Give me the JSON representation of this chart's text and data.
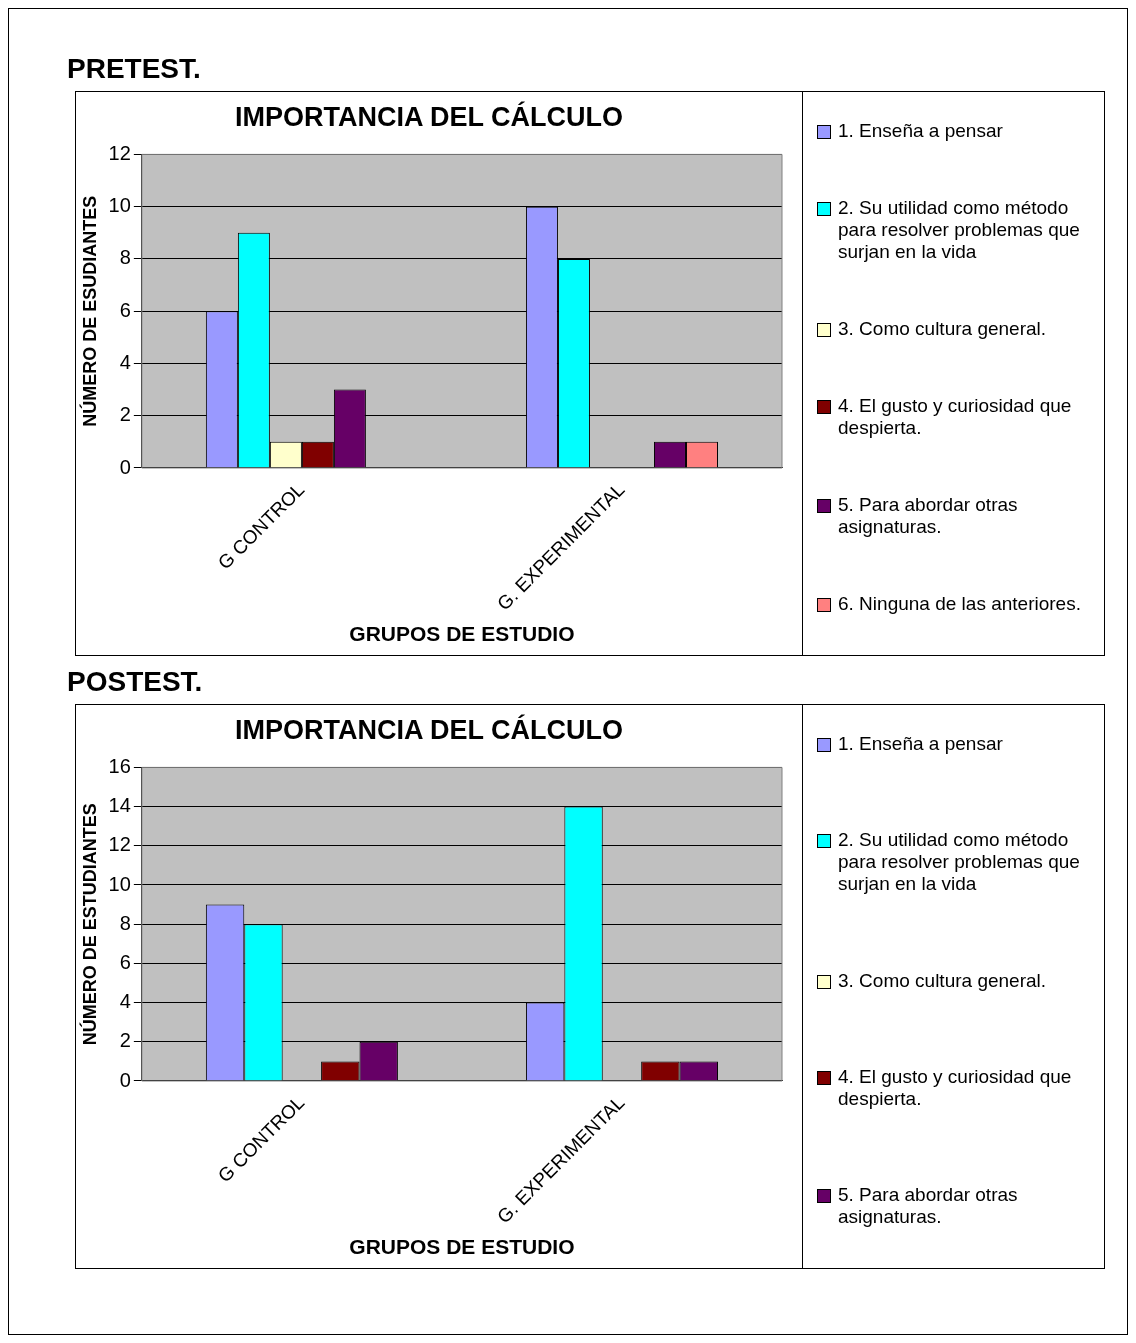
{
  "chart_data": [
    {
      "type": "bar",
      "title": "IMPORTANCIA DEL CÁLCULO",
      "annotations": [
        "PRETEST."
      ],
      "xlabel": "GRUPOS DE ESTUDIO",
      "ylabel": "NÚMERO DE ESUDIANTES",
      "categories": [
        "G CONTROL",
        "G. EXPERIMENTAL"
      ],
      "series": [
        {
          "name": "1. Enseña a pensar",
          "color": "#9999ff",
          "values": [
            6,
            10
          ]
        },
        {
          "name": "2. Su utilidad como método para resolver problemas que surjan en la vida",
          "color": "#00ffff",
          "values": [
            9,
            8
          ]
        },
        {
          "name": "3. Como cultura general.",
          "color": "#ffffcc",
          "values": [
            1,
            0
          ]
        },
        {
          "name": "4. El gusto y curiosidad que despierta.",
          "color": "#800000",
          "values": [
            1,
            0
          ]
        },
        {
          "name": "5. Para abordar otras asignaturas.",
          "color": "#660066",
          "values": [
            3,
            1
          ]
        },
        {
          "name": "6. Ninguna de las anteriores.",
          "color": "#ff8080",
          "values": [
            0,
            1
          ]
        }
      ],
      "ylim": [
        0,
        12
      ],
      "yticks": [
        0,
        2,
        4,
        6,
        8,
        10,
        12
      ],
      "grid": "y",
      "legend": "right"
    },
    {
      "type": "bar",
      "title": "IMPORTANCIA DEL CÁLCULO",
      "annotations": [
        "POSTEST."
      ],
      "xlabel": "GRUPOS DE ESTUDIO",
      "ylabel": "NÚMERO DE ESTUDIANTES",
      "categories": [
        "G CONTROL",
        "G. EXPERIMENTAL"
      ],
      "series": [
        {
          "name": "1. Enseña a pensar",
          "color": "#9999ff",
          "values": [
            9,
            4
          ]
        },
        {
          "name": "2. Su utilidad como método para resolver problemas que surjan en la vida",
          "color": "#00ffff",
          "values": [
            8,
            14
          ]
        },
        {
          "name": "3. Como cultura general.",
          "color": "#ffffcc",
          "values": [
            0,
            0
          ]
        },
        {
          "name": "4. El gusto y curiosidad que despierta.",
          "color": "#800000",
          "values": [
            1,
            1
          ]
        },
        {
          "name": "5. Para abordar otras asignaturas.",
          "color": "#660066",
          "values": [
            2,
            1
          ]
        }
      ],
      "ylim": [
        0,
        16
      ],
      "yticks": [
        0,
        2,
        4,
        6,
        8,
        10,
        12,
        14,
        16
      ],
      "grid": "y",
      "legend": "right"
    }
  ]
}
